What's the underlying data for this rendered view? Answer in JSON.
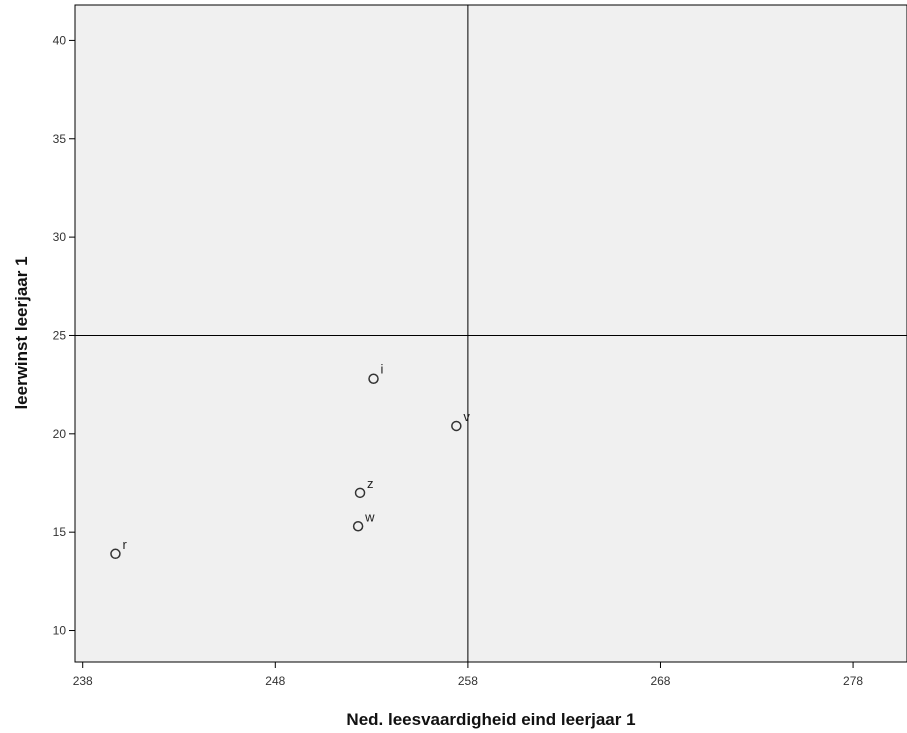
{
  "chart_data": {
    "type": "scatter",
    "xlabel": "Ned. leesvaardigheid eind leerjaar 1",
    "ylabel": "leerwinst leerjaar 1",
    "xlim": [
      237.6,
      280.8
    ],
    "ylim": [
      8.4,
      41.8
    ],
    "xticks": [
      238,
      248,
      258,
      268,
      278
    ],
    "yticks": [
      10,
      15,
      20,
      25,
      30,
      35,
      40
    ],
    "reference_lines": {
      "x": 258,
      "y": 25
    },
    "grid": false,
    "legend": "none",
    "colors": {
      "plot_bg": "#f0f0f0",
      "marker": "#333333",
      "axis": "#000000"
    },
    "points": [
      {
        "label": "i",
        "x": 253.1,
        "y": 22.8
      },
      {
        "label": "v",
        "x": 257.4,
        "y": 20.4
      },
      {
        "label": "z",
        "x": 252.4,
        "y": 17.0
      },
      {
        "label": "w",
        "x": 252.3,
        "y": 15.3
      },
      {
        "label": "r",
        "x": 239.7,
        "y": 13.9
      }
    ]
  }
}
